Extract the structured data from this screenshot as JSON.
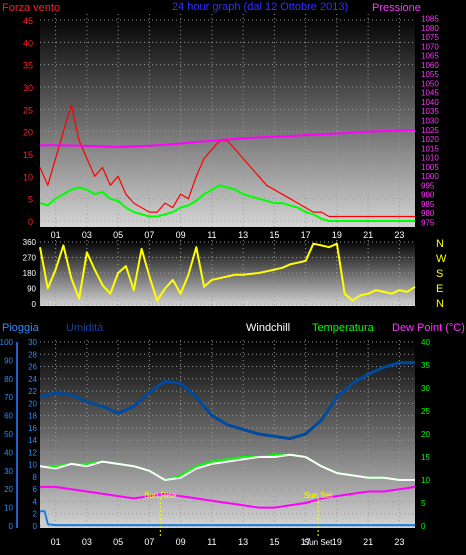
{
  "title": "24 hour graph (dal 12 Ottobre 2013)",
  "colors": {
    "wind": "#ff0000",
    "windAvg": "#00ff00",
    "pressure": "#ff00ff",
    "direction": "#ffff00",
    "rain": "#1e7fe0",
    "humidity": "#004a9e",
    "windchill": "#ffffff",
    "temperature": "#00ff00",
    "dewpoint": "#ff00ff",
    "sunMark": "#ffff00",
    "axisLeft": "#ff2020",
    "axisRight": "#ff33ff"
  },
  "chart_data": [
    {
      "type": "line",
      "name": "wind-pressure",
      "left_axis_label": "Forza vento",
      "right_axis_label": "Pressione",
      "x_ticks": [
        "01",
        "03",
        "05",
        "07",
        "09",
        "11",
        "13",
        "15",
        "17",
        "19",
        "21",
        "23"
      ],
      "x_range": [
        0,
        24
      ],
      "y_left_range": [
        0,
        45
      ],
      "y_left_ticks": [
        0,
        5,
        10,
        15,
        20,
        25,
        30,
        35,
        40,
        45
      ],
      "y_right_range": [
        972.5,
        1087.5
      ],
      "y_right_ticks": [
        975,
        980,
        985,
        990,
        995,
        1000,
        1005,
        1010,
        1015,
        1020,
        1025,
        1030,
        1035,
        1040,
        1045,
        1050,
        1055,
        1060,
        1065,
        1070,
        1075,
        1080,
        1085
      ],
      "series": [
        {
          "key": "gust",
          "axis": "left",
          "x": [
            0,
            0.5,
            1,
            1.5,
            2,
            2.5,
            3,
            3.5,
            4,
            4.5,
            5,
            5.5,
            6,
            6.5,
            7,
            7.5,
            8,
            8.5,
            9,
            9.5,
            10,
            10.5,
            11,
            11.5,
            12,
            12.5,
            13,
            13.5,
            14,
            14.5,
            15,
            15.5,
            16,
            16.5,
            17,
            17.5,
            18,
            18.5,
            19,
            19.5,
            20,
            20.5,
            21,
            21.5,
            22,
            22.5,
            23,
            23.5,
            24
          ],
          "y": [
            12,
            8,
            14,
            20,
            26,
            18,
            14,
            10,
            12,
            8,
            10,
            6,
            4,
            3,
            2,
            2,
            4,
            3,
            6,
            5,
            10,
            14,
            16,
            18,
            18,
            16,
            14,
            12,
            10,
            8,
            7,
            6,
            5,
            4,
            3,
            2,
            2,
            1,
            1,
            1,
            1,
            1,
            1,
            1,
            1,
            1,
            1,
            1,
            1
          ]
        },
        {
          "key": "wind",
          "axis": "left",
          "x": [
            0,
            0.5,
            1,
            1.5,
            2,
            2.5,
            3,
            3.5,
            4,
            4.5,
            5,
            5.5,
            6,
            6.5,
            7,
            7.5,
            8,
            8.5,
            9,
            9.5,
            10,
            10.5,
            11,
            11.5,
            12,
            12.5,
            13,
            13.5,
            14,
            14.5,
            15,
            15.5,
            16,
            16.5,
            17,
            17.5,
            18,
            18.5,
            19,
            19.5,
            20,
            20.5,
            21,
            21.5,
            22,
            22.5,
            23,
            23.5,
            24
          ],
          "y": [
            4,
            3.5,
            5,
            6,
            7,
            7.5,
            7,
            6,
            6.5,
            5,
            4.5,
            3,
            2,
            1.5,
            1,
            1,
            1.5,
            2,
            3,
            3.5,
            4.5,
            6,
            7,
            8,
            7.5,
            7,
            6,
            5.5,
            5,
            4.5,
            4,
            4,
            3.5,
            3,
            2,
            1.5,
            0.5,
            0,
            0,
            0,
            0,
            0,
            0,
            0,
            0,
            0,
            0,
            0,
            0
          ]
        },
        {
          "key": "pressure",
          "axis": "right",
          "x": [
            0,
            1,
            2,
            3,
            4,
            5,
            6,
            7,
            8,
            9,
            10,
            11,
            12,
            13,
            14,
            15,
            16,
            17,
            18,
            19,
            20,
            21,
            22,
            23,
            24
          ],
          "y": [
            1016.6,
            1016.6,
            1016.5,
            1016.3,
            1016,
            1015.7,
            1016,
            1016.4,
            1016.9,
            1017.6,
            1018.4,
            1019.1,
            1019.8,
            1020.4,
            1020.9,
            1021.3,
            1021.6,
            1022.1,
            1022.5,
            1023,
            1023.5,
            1024,
            1024.3,
            1024.6,
            1024.9
          ]
        }
      ]
    },
    {
      "type": "line",
      "name": "wind-direction",
      "y_ticks": [
        0,
        90,
        180,
        270,
        360
      ],
      "y_range": [
        0,
        360
      ],
      "compass_labels": [
        "N",
        "W",
        "S",
        "E",
        "N"
      ],
      "series": [
        {
          "key": "direction",
          "x": [
            0,
            0.5,
            1,
            1.5,
            2,
            2.5,
            3,
            3.5,
            4,
            4.5,
            5,
            5.5,
            6,
            6.5,
            7,
            7.5,
            8,
            8.5,
            9,
            9.5,
            10,
            10.5,
            11,
            11.5,
            12,
            12.5,
            13,
            13.5,
            14,
            14.5,
            15,
            15.5,
            16,
            16.5,
            17,
            17.5,
            18,
            18.5,
            19,
            19.5,
            20,
            20.5,
            21,
            21.5,
            22,
            22.5,
            23,
            23.5,
            24
          ],
          "y": [
            330,
            90,
            200,
            340,
            150,
            30,
            300,
            200,
            110,
            60,
            180,
            220,
            80,
            320,
            160,
            20,
            90,
            140,
            60,
            170,
            330,
            100,
            140,
            150,
            160,
            170,
            170,
            175,
            180,
            190,
            200,
            210,
            230,
            240,
            250,
            350,
            340,
            330,
            350,
            60,
            20,
            50,
            60,
            80,
            70,
            60,
            80,
            70,
            100
          ]
        }
      ]
    },
    {
      "type": "line",
      "name": "temperature-humidity-rain",
      "labels": [
        "Pioggia",
        "Umidità",
        "Windchill",
        "Temperatura",
        "Dew Point (°C)"
      ],
      "x_ticks": [
        "01",
        "03",
        "05",
        "07",
        "09",
        "11",
        "13",
        "15",
        "17",
        "19",
        "21",
        "23"
      ],
      "x_range": [
        0,
        24
      ],
      "rain_axis_range": [
        0,
        100
      ],
      "rain_axis_ticks": [
        0,
        10,
        20,
        30,
        40,
        50,
        60,
        70,
        80,
        90,
        100
      ],
      "humidity_axis_range": [
        0,
        30
      ],
      "humidity_axis_ticks": [
        0,
        2,
        4,
        6,
        8,
        10,
        12,
        14,
        16,
        18,
        20,
        22,
        24,
        26,
        28,
        30
      ],
      "temperature_axis_range": [
        0,
        40
      ],
      "temperature_axis_ticks": [
        0,
        5,
        10,
        15,
        20,
        25,
        30,
        35,
        40
      ],
      "sun_rise_label": "Sun Rise",
      "sun_set_label": "Sun Set",
      "sun_rise_x": 7.7,
      "sun_set_x": 17.8,
      "series": [
        {
          "key": "humidity",
          "axis": "temperature",
          "x": [
            0,
            1,
            2,
            3,
            4,
            5,
            6,
            7,
            8,
            9,
            10,
            11,
            12,
            13,
            14,
            15,
            16,
            17,
            18,
            19,
            20,
            21,
            22,
            23,
            24
          ],
          "y": [
            28,
            29,
            28.5,
            27,
            26,
            24.5,
            26,
            29,
            31.5,
            31,
            28,
            24,
            22,
            21,
            20,
            19.5,
            19,
            20,
            23,
            28,
            31,
            33,
            34.5,
            35.5,
            35.5
          ]
        },
        {
          "key": "temperature",
          "axis": "temperature",
          "x": [
            0,
            1,
            2,
            3,
            4,
            5,
            6,
            7,
            8,
            9,
            10,
            11,
            12,
            13,
            14,
            15,
            16,
            17,
            18,
            19,
            20,
            21,
            22,
            23,
            24
          ],
          "y": [
            13,
            13,
            13.5,
            13.5,
            14,
            13.5,
            13,
            12,
            10,
            11,
            13,
            14,
            14.5,
            15,
            15,
            15.5,
            15.5,
            15,
            13,
            11.5,
            11,
            10.5,
            10.5,
            10,
            10
          ]
        },
        {
          "key": "windchill",
          "axis": "temperature",
          "x": [
            0,
            1,
            2,
            3,
            4,
            5,
            6,
            7,
            8,
            9,
            10,
            11,
            12,
            13,
            14,
            15,
            16,
            17,
            18,
            19,
            20,
            21,
            22,
            23,
            24
          ],
          "y": [
            13,
            12.5,
            13.5,
            13,
            14,
            13.5,
            13,
            12,
            10,
            10.5,
            12.5,
            13.5,
            14,
            14.5,
            15,
            15,
            15.5,
            15,
            13,
            11.5,
            11,
            10.5,
            10.5,
            10,
            10
          ]
        },
        {
          "key": "dewpoint",
          "axis": "temperature",
          "x": [
            0,
            1,
            2,
            3,
            4,
            5,
            6,
            7,
            8,
            9,
            10,
            11,
            12,
            13,
            14,
            15,
            16,
            17,
            18,
            19,
            20,
            21,
            22,
            23,
            24
          ],
          "y": [
            8.5,
            8.5,
            8,
            7.5,
            7,
            6.5,
            6,
            6.5,
            7,
            6.5,
            6,
            5.5,
            5,
            4.5,
            4,
            4,
            4.5,
            5,
            6,
            6.5,
            7,
            7.5,
            7.5,
            8,
            8.5
          ]
        },
        {
          "key": "rain",
          "axis": "rain",
          "x": [
            0,
            0.3,
            0.5,
            1,
            24
          ],
          "y": [
            8,
            8,
            1,
            0.5,
            0.5
          ]
        }
      ]
    }
  ]
}
